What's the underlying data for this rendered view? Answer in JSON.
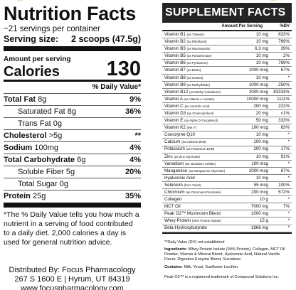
{
  "nutrition": {
    "title": "Nutrition Facts",
    "servings": "~21 servings per container",
    "serving_size_label": "Serving size:",
    "serving_size_value": "2 scoops (47.5g)",
    "amount_per_serving": "Amount per serving",
    "calories_label": "Calories",
    "calories_value": "130",
    "dv_header": "% Daily Value*",
    "rows": [
      {
        "label": "Total Fat",
        "amount": "8g",
        "dv": "9%",
        "bold": true,
        "indent": false
      },
      {
        "label": "Saturated Fat",
        "amount": "8g",
        "dv": "36%",
        "bold": false,
        "indent": true
      },
      {
        "label": "Trans Fat",
        "amount": "0g",
        "dv": "",
        "bold": false,
        "indent": true
      },
      {
        "label": "Cholesterol",
        "amount": ">5g",
        "dv": "**",
        "bold": true,
        "indent": false
      },
      {
        "label": "Sodium",
        "amount": "100mg",
        "dv": "4%",
        "bold": true,
        "indent": false
      },
      {
        "label": "Total Carbohydrate",
        "amount": "6g",
        "dv": "4%",
        "bold": true,
        "indent": false
      },
      {
        "label": "Soluble Fiber",
        "amount": "5g",
        "dv": "20%",
        "bold": false,
        "indent": true
      },
      {
        "label": "Total Sugar",
        "amount": "0g",
        "dv": "",
        "bold": false,
        "indent": true
      },
      {
        "label": "Protein",
        "amount": "25g",
        "dv": "35%",
        "bold": true,
        "indent": false
      }
    ],
    "footnote": "*The % Daily Value tells you how much a nutrient in a serving of food contributed to a daily diet. 2,000 calories a day is used for general nutrition advice.",
    "distributor_line1": "Distributed By: Focus Pharmacology",
    "distributor_line2": "267 S 1600 E | Hyrum, UT 84319",
    "distributor_line3": "www.focuspharmacology.com"
  },
  "supplement": {
    "title": "SUPPLEMENT FACTS",
    "col_amount": "Amount Per Serving",
    "col_dv": "%DV",
    "rows": [
      {
        "name": "Vitamin B1",
        "sub": "(as Thiamin)",
        "amount": "10 mg",
        "dv": "833%"
      },
      {
        "name": "Vitamin B2",
        "sub": "(as Riboflavin)",
        "amount": "10 mg",
        "dv": "769%"
      },
      {
        "name": "Vitamin B3",
        "sub": "(as Niacinamide)",
        "amount": "6.3 mg",
        "dv": "39%"
      },
      {
        "name": "Vitamin B5",
        "sub": "(as Pantothenate)",
        "amount": "10 mg",
        "dv": "2%"
      },
      {
        "name": "Vitamin B6",
        "sub": "(as Pyridoxine)",
        "amount": "10 mg",
        "dv": "769%"
      },
      {
        "name": "Vitamin B7",
        "sub": "(as Biotin)",
        "amount": "1000 mcg",
        "dv": "67%"
      },
      {
        "name": "Vitamin B8",
        "sub": "(as Inositol)",
        "amount": "10 mg",
        "dv": "*"
      },
      {
        "name": "Vitamin B9",
        "sub": "(as Methylfolate)",
        "amount": "1000 mcg",
        "dv": "250%"
      },
      {
        "name": "Vitamin B12",
        "sub": "(as Methyl Cobalamin)",
        "amount": "2000 mcg",
        "dv": "83333%"
      },
      {
        "name": "Vitamin A",
        "sub": "(as Vitamin A Acetate)",
        "amount": "10000 mcg",
        "dv": "1111%"
      },
      {
        "name": "Vitamin C",
        "sub": "(as Ascorbic Acid)",
        "amount": "200 mg",
        "dv": "222%"
      },
      {
        "name": "Vitamin D3",
        "sub": "(as Cholecalciferol)",
        "amount": "20 mg",
        "dv": "<1%"
      },
      {
        "name": "Vitamin E",
        "sub": "(as Alpha D-Tocopherol)",
        "amount": "50 mg",
        "dv": "333%"
      },
      {
        "name": "Vitamin K2",
        "sub": "(MK-7)",
        "amount": "100 mcg",
        "dv": "83%"
      },
      {
        "name": "Coenzyme Q10",
        "sub": "",
        "amount": "10 mg",
        "dv": "*"
      },
      {
        "name": "Calcium",
        "sub": "(as Calcium BHB)",
        "amount": "100 mg",
        "dv": "*"
      },
      {
        "name": "Potassium",
        "sub": "(as Potassium BHB)",
        "amount": "200 mg",
        "dv": "17%"
      },
      {
        "name": "Zinc",
        "sub": "(as Zinc Glycinate)",
        "amount": "10 mg",
        "dv": "91%"
      },
      {
        "name": "Vanadium",
        "sub": "(as Vanadium Sulfate)",
        "amount": "100 mcg",
        "dv": "*"
      },
      {
        "name": "Manganese",
        "sub": "(as Manganese Glycinate)",
        "amount": "2000 mcg",
        "dv": "87%"
      },
      {
        "name": "Hyaluronic Acid",
        "sub": "",
        "amount": "10 mg",
        "dv": "*"
      },
      {
        "name": "Selenium",
        "sub": "(from Yeast)",
        "amount": "55 mcg",
        "dv": "100%"
      },
      {
        "name": "Chromium",
        "sub": "(as Chromium Picolinate)",
        "amount": "200 mcg",
        "dv": "572%"
      },
      {
        "name": "Collagen",
        "sub": "",
        "amount": "10 g",
        "dv": "*"
      },
      {
        "name": "MCT Oil",
        "sub": "",
        "amount": "7000 mg",
        "dv": "7%"
      },
      {
        "name": "Peak O2™ Mushroom Blend",
        "sub": "",
        "amount": "1000 mg",
        "dv": "*"
      },
      {
        "name": "Whey Protein",
        "sub": "(90% Protein Isolate)",
        "amount": "15 g",
        "dv": "*"
      },
      {
        "name": "Beta-Hydroxybutyrate",
        "sub": "",
        "amount": "1866 mg",
        "dv": "*"
      }
    ],
    "note": "**Daily Value (DV) not established",
    "ingredients_label": "Ingredients:",
    "ingredients_text": "Whey Protein Isolate (90% Protein), Collagen, MCT Oil Powder, Vitamin & Mineral Blend, Hyaluronic Acid, Natural Vanilla Flavor, Digestive Enzyme Blend, Sucralose.",
    "contains_label": "Contains:",
    "contains_text": "Milk, Yeast, Sunflower Lecithin.",
    "trademark": "Peak O2™ is a registered trademark of Compound Solutions Inc."
  }
}
